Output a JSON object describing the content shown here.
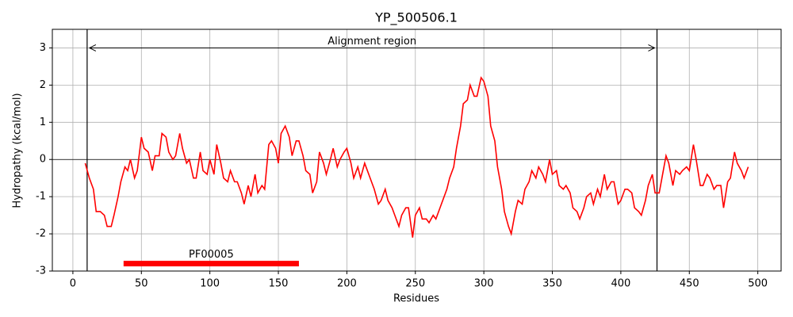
{
  "chart_data": {
    "type": "line",
    "title": "YP_500506.1",
    "xlabel": "Residues",
    "ylabel": "Hydropathy (kcal/mol)",
    "color": "#ff0000",
    "grid": true,
    "xlim": [
      -15,
      517
    ],
    "ylim": [
      -3,
      3.5
    ],
    "xticks": [
      0,
      50,
      100,
      150,
      200,
      250,
      300,
      350,
      400,
      450,
      500
    ],
    "yticks": [
      -3,
      -2,
      -1,
      0,
      1,
      2,
      3
    ],
    "hline": 0,
    "alignment_region": {
      "label": "Alignment region",
      "start": 10.4,
      "end": 426.4,
      "y": 3
    },
    "domains": [
      {
        "label": "PF00005",
        "start": 37,
        "end": 165,
        "y": -2.8
      }
    ],
    "x": [
      9,
      12,
      15,
      17,
      20,
      23,
      25,
      28,
      30,
      33,
      35,
      38,
      40,
      42,
      45,
      47,
      50,
      52,
      55,
      58,
      60,
      63,
      65,
      68,
      70,
      73,
      75,
      78,
      80,
      83,
      85,
      88,
      90,
      93,
      95,
      98,
      100,
      103,
      105,
      108,
      110,
      113,
      115,
      118,
      120,
      123,
      125,
      128,
      130,
      133,
      135,
      138,
      140,
      143,
      145,
      148,
      150,
      152,
      155,
      158,
      160,
      163,
      165,
      168,
      170,
      173,
      175,
      178,
      180,
      183,
      185,
      188,
      190,
      193,
      195,
      198,
      200,
      203,
      205,
      208,
      210,
      213,
      215,
      218,
      220,
      223,
      225,
      228,
      230,
      233,
      235,
      238,
      240,
      243,
      245,
      248,
      250,
      253,
      255,
      258,
      260,
      263,
      265,
      268,
      270,
      273,
      275,
      278,
      280,
      283,
      285,
      288,
      290,
      293,
      295,
      298,
      300,
      303,
      305,
      308,
      310,
      313,
      315,
      318,
      320,
      323,
      325,
      328,
      330,
      333,
      335,
      338,
      340,
      343,
      345,
      348,
      350,
      353,
      355,
      358,
      360,
      363,
      365,
      368,
      370,
      373,
      375,
      378,
      380,
      383,
      385,
      388,
      390,
      393,
      395,
      398,
      400,
      403,
      405,
      408,
      410,
      413,
      415,
      418,
      420,
      423,
      425,
      428,
      430,
      433,
      435,
      438,
      440,
      443,
      445,
      448,
      450,
      453,
      455,
      458,
      460,
      463,
      465,
      468,
      470,
      473,
      475,
      478,
      480,
      483,
      485,
      488,
      490,
      493
    ],
    "values": [
      -0.1,
      -0.5,
      -0.8,
      -1.4,
      -1.4,
      -1.5,
      -1.8,
      -1.8,
      -1.5,
      -1.0,
      -0.6,
      -0.2,
      -0.3,
      0.0,
      -0.5,
      -0.3,
      0.6,
      0.3,
      0.2,
      -0.3,
      0.1,
      0.1,
      0.7,
      0.6,
      0.2,
      0.0,
      0.1,
      0.7,
      0.3,
      -0.1,
      0.0,
      -0.5,
      -0.5,
      0.2,
      -0.3,
      -0.4,
      0.0,
      -0.4,
      0.4,
      -0.1,
      -0.5,
      -0.6,
      -0.3,
      -0.6,
      -0.6,
      -0.9,
      -1.2,
      -0.7,
      -1.0,
      -0.4,
      -0.9,
      -0.7,
      -0.8,
      0.4,
      0.5,
      0.3,
      -0.1,
      0.7,
      0.9,
      0.6,
      0.1,
      0.5,
      0.5,
      0.1,
      -0.3,
      -0.4,
      -0.9,
      -0.6,
      0.2,
      -0.1,
      -0.4,
      0.0,
      0.3,
      -0.2,
      0.0,
      0.2,
      0.3,
      -0.1,
      -0.5,
      -0.2,
      -0.5,
      -0.1,
      -0.3,
      -0.6,
      -0.8,
      -1.2,
      -1.1,
      -0.8,
      -1.1,
      -1.3,
      -1.5,
      -1.8,
      -1.5,
      -1.3,
      -1.3,
      -2.1,
      -1.5,
      -1.3,
      -1.6,
      -1.6,
      -1.7,
      -1.5,
      -1.6,
      -1.3,
      -1.1,
      -0.8,
      -0.5,
      -0.2,
      0.3,
      0.9,
      1.5,
      1.6,
      2.0,
      1.7,
      1.7,
      2.2,
      2.1,
      1.7,
      0.9,
      0.5,
      -0.2,
      -0.8,
      -1.4,
      -1.8,
      -2.0,
      -1.4,
      -1.1,
      -1.2,
      -0.8,
      -0.6,
      -0.3,
      -0.5,
      -0.2,
      -0.4,
      -0.6,
      0.0,
      -0.4,
      -0.3,
      -0.7,
      -0.8,
      -0.7,
      -0.9,
      -1.3,
      -1.4,
      -1.6,
      -1.3,
      -1.0,
      -0.9,
      -1.2,
      -0.8,
      -1.0,
      -0.4,
      -0.8,
      -0.6,
      -0.6,
      -1.2,
      -1.1,
      -0.8,
      -0.8,
      -0.9,
      -1.3,
      -1.4,
      -1.5,
      -1.1,
      -0.7,
      -0.4,
      -0.9,
      -0.9,
      -0.5,
      0.1,
      -0.1,
      -0.7,
      -0.3,
      -0.4,
      -0.3,
      -0.2,
      -0.3,
      0.4,
      0.0,
      -0.7,
      -0.7,
      -0.4,
      -0.5,
      -0.8,
      -0.7,
      -0.7,
      -1.3,
      -0.6,
      -0.5,
      0.2,
      -0.1,
      -0.3,
      -0.5,
      -0.2
    ]
  }
}
